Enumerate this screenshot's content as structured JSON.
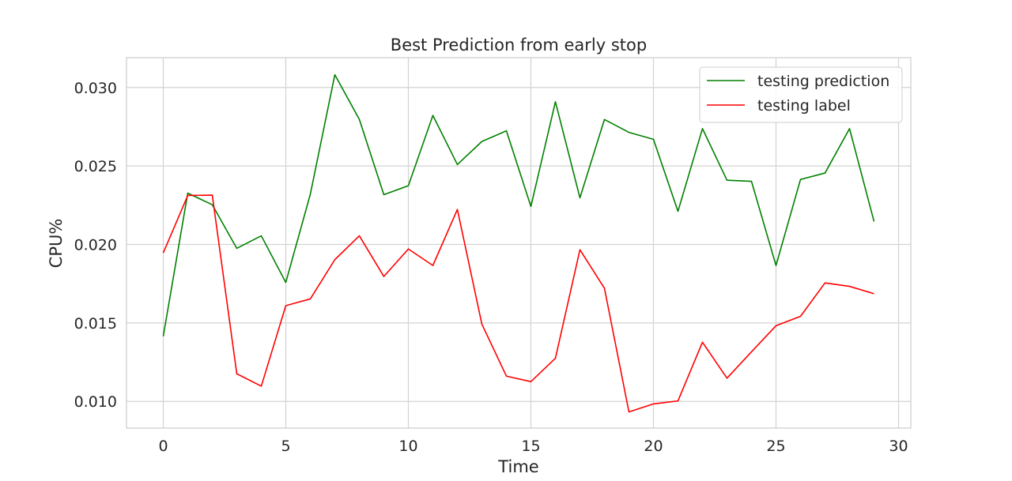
{
  "chart_data": {
    "type": "line",
    "title": "Best Prediction from early stop",
    "xlabel": "Time",
    "ylabel": "CPU%",
    "xlim": [
      -1.5,
      30.5
    ],
    "ylim": [
      0.0083,
      0.0319
    ],
    "xticks": [
      0,
      5,
      10,
      15,
      20,
      25,
      30
    ],
    "xtick_labels": [
      "0",
      "5",
      "10",
      "15",
      "20",
      "25",
      "30"
    ],
    "yticks": [
      0.01,
      0.015,
      0.02,
      0.025,
      0.03
    ],
    "ytick_labels": [
      "0.010",
      "0.015",
      "0.020",
      "0.025",
      "0.030"
    ],
    "grid": true,
    "legend_position": "top-right",
    "x": [
      0,
      1,
      2,
      3,
      4,
      5,
      6,
      7,
      8,
      9,
      10,
      11,
      12,
      13,
      14,
      15,
      16,
      17,
      18,
      19,
      20,
      21,
      22,
      23,
      24,
      25,
      26,
      27,
      28,
      29
    ],
    "series": [
      {
        "name": "testing prediction",
        "color": "#008000",
        "values": [
          0.01415,
          0.02327,
          0.02253,
          0.01975,
          0.02055,
          0.01758,
          0.0232,
          0.03081,
          0.02797,
          0.02317,
          0.02374,
          0.02822,
          0.02509,
          0.02656,
          0.02724,
          0.02242,
          0.02909,
          0.02297,
          0.02796,
          0.02714,
          0.0267,
          0.02211,
          0.02738,
          0.02409,
          0.02402,
          0.01866,
          0.02414,
          0.02455,
          0.02738,
          0.02146
        ]
      },
      {
        "name": "testing label",
        "color": "#ff0000",
        "values": [
          0.01946,
          0.02312,
          0.02314,
          0.01176,
          0.01097,
          0.0161,
          0.01653,
          0.01903,
          0.02055,
          0.01796,
          0.01971,
          0.01866,
          0.02223,
          0.01492,
          0.01161,
          0.01126,
          0.01275,
          0.01966,
          0.01721,
          0.00933,
          0.00984,
          0.01003,
          0.01377,
          0.01148,
          0.01316,
          0.01482,
          0.01542,
          0.01755,
          0.01733,
          0.01686
        ]
      }
    ]
  }
}
